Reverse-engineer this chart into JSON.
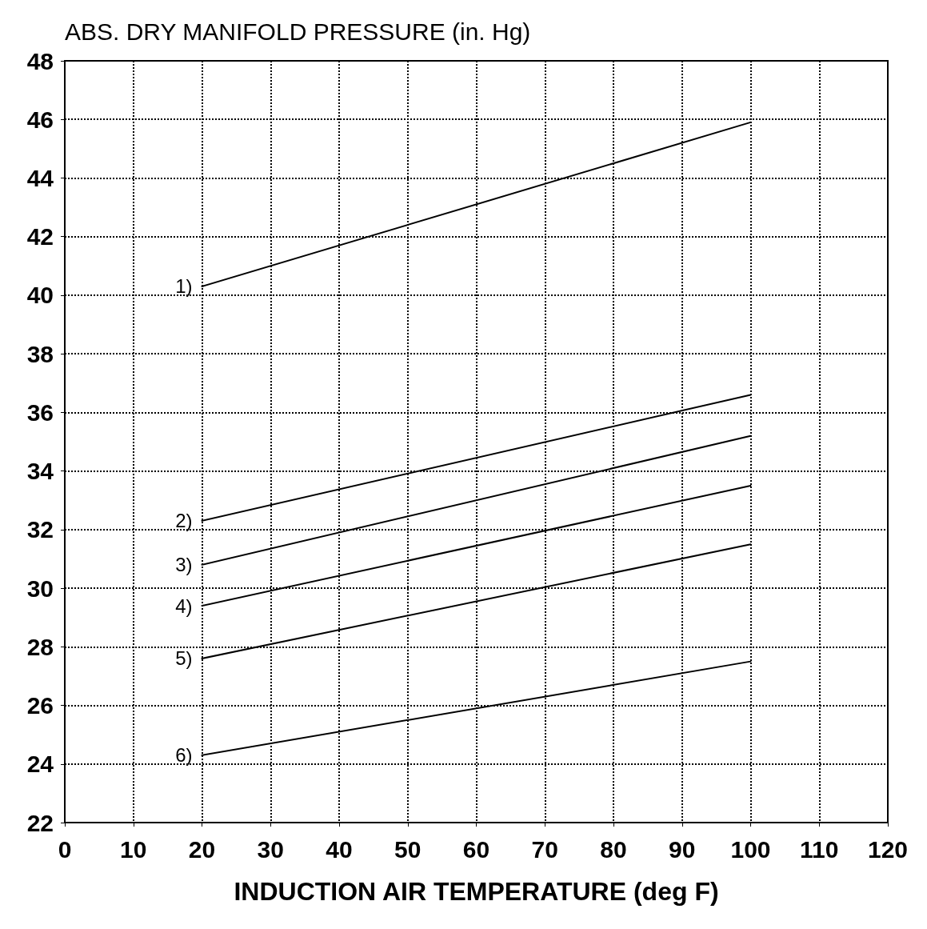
{
  "chart_data": {
    "type": "line",
    "ylabel": "ABS. DRY MANIFOLD PRESSURE (in. Hg)",
    "xlabel": "INDUCTION AIR TEMPERATURE (deg F)",
    "xlim": [
      0,
      120
    ],
    "xticks": [
      0,
      10,
      20,
      30,
      40,
      50,
      60,
      70,
      80,
      90,
      100,
      110,
      120
    ],
    "ylim": [
      22,
      48
    ],
    "yticks": [
      22,
      24,
      26,
      28,
      30,
      32,
      34,
      36,
      38,
      40,
      42,
      44,
      46,
      48
    ],
    "grid": true,
    "legend": false,
    "marker": "none",
    "line_style": "solid",
    "x": [
      20,
      100
    ],
    "series": [
      {
        "name": "1)",
        "color": "#000000",
        "values": [
          40.3,
          45.9
        ]
      },
      {
        "name": "2)",
        "color": "#000000",
        "values": [
          32.3,
          36.6
        ]
      },
      {
        "name": "3)",
        "color": "#000000",
        "values": [
          30.8,
          35.2
        ]
      },
      {
        "name": "4)",
        "color": "#000000",
        "values": [
          29.4,
          33.5
        ]
      },
      {
        "name": "5)",
        "color": "#000000",
        "values": [
          27.6,
          31.5
        ]
      },
      {
        "name": "6)",
        "color": "#000000",
        "values": [
          24.3,
          27.5
        ]
      }
    ]
  }
}
